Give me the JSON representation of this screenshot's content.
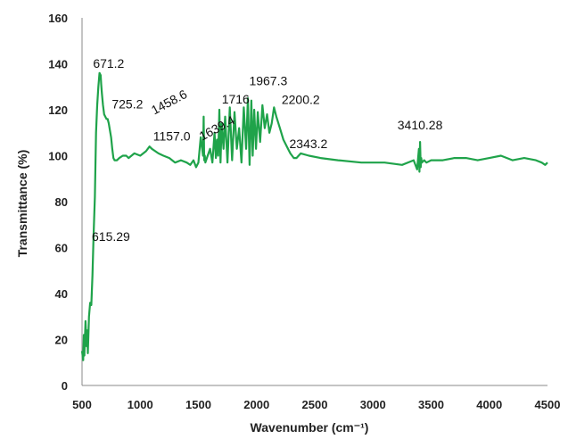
{
  "chart_data": {
    "type": "line",
    "title": "",
    "xlabel": "Wavenumber (cm⁻¹)",
    "ylabel": "Transmittance (%)",
    "xlim": [
      500,
      4500
    ],
    "ylim": [
      0,
      160
    ],
    "xticks": [
      500,
      1000,
      1500,
      2000,
      2500,
      3000,
      3500,
      4000,
      4500
    ],
    "yticks": [
      0,
      20,
      40,
      60,
      80,
      100,
      120,
      140,
      160
    ],
    "grid": false,
    "legend": "none",
    "series": [
      {
        "color": "#1fa34a",
        "x": [
          500,
          510,
          515,
          520,
          530,
          540,
          545,
          550,
          560,
          570,
          580,
          590,
          600,
          610,
          615,
          620,
          630,
          640,
          650,
          660,
          665,
          671,
          680,
          690,
          700,
          710,
          720,
          730,
          740,
          750,
          760,
          770,
          780,
          800,
          820,
          850,
          880,
          900,
          950,
          1000,
          1050,
          1080,
          1100,
          1157,
          1200,
          1250,
          1300,
          1350,
          1400,
          1430,
          1458,
          1480,
          1500,
          1520,
          1540,
          1545,
          1550,
          1555,
          1560,
          1580,
          1600,
          1620,
          1639,
          1650,
          1660,
          1670,
          1680,
          1690,
          1700,
          1716,
          1730,
          1750,
          1770,
          1790,
          1810,
          1830,
          1850,
          1870,
          1890,
          1910,
          1925,
          1940,
          1955,
          1967,
          1980,
          1995,
          2010,
          2030,
          2050,
          2070,
          2090,
          2110,
          2130,
          2150,
          2170,
          2200,
          2230,
          2260,
          2290,
          2320,
          2343,
          2380,
          2450,
          2550,
          2700,
          2900,
          3100,
          3250,
          3350,
          3380,
          3395,
          3400,
          3405,
          3410,
          3415,
          3420,
          3440,
          3460,
          3500,
          3600,
          3700,
          3800,
          3900,
          4000,
          4100,
          4200,
          4300,
          4400,
          4450,
          4480,
          4500
        ],
        "y": [
          15,
          11,
          22,
          13,
          28,
          17,
          24,
          14,
          30,
          36,
          35,
          48,
          66,
          82,
          95,
          110,
          122,
          130,
          136,
          135,
          131,
          127,
          122,
          118,
          117,
          116,
          116,
          114,
          111,
          108,
          103,
          99,
          98,
          98,
          99,
          100,
          100,
          99,
          101,
          100,
          102,
          104,
          103,
          101,
          100,
          99,
          97,
          98,
          97,
          96,
          98,
          95,
          97,
          108,
          100,
          117,
          98,
          100,
          97,
          100,
          103,
          97,
          110,
          99,
          107,
          100,
          120,
          97,
          114,
          103,
          117,
          97,
          121,
          98,
          119,
          103,
          112,
          97,
          121,
          103,
          125,
          96,
          124,
          100,
          120,
          103,
          119,
          106,
          122,
          112,
          118,
          110,
          114,
          121,
          117,
          112,
          107,
          104,
          101,
          99,
          99,
          101,
          100,
          99,
          98,
          97,
          97,
          96,
          98,
          94,
          103,
          93,
          106,
          95,
          99,
          97,
          98,
          97,
          98,
          98,
          99,
          99,
          98,
          99,
          100,
          98,
          99,
          98,
          97,
          96,
          97
        ]
      }
    ],
    "annotations": [
      {
        "text": "671.2",
        "x": 671,
        "y": 136
      },
      {
        "text": "725.2",
        "x": 725,
        "y": 119
      },
      {
        "text": "1157.0",
        "x": 1157,
        "y": 105
      },
      {
        "text": "1458.6",
        "x": 1458,
        "y": 117
      },
      {
        "text": "1639.4",
        "x": 1639,
        "y": 108
      },
      {
        "text": "1716",
        "x": 1716,
        "y": 122
      },
      {
        "text": "1967.3",
        "x": 1967,
        "y": 130
      },
      {
        "text": "2200.2",
        "x": 2200,
        "y": 121
      },
      {
        "text": "2343.2",
        "x": 2343,
        "y": 101
      },
      {
        "text": "3410.28",
        "x": 3410,
        "y": 110
      },
      {
        "text": "615.29",
        "x": 615,
        "y": 63
      }
    ]
  }
}
